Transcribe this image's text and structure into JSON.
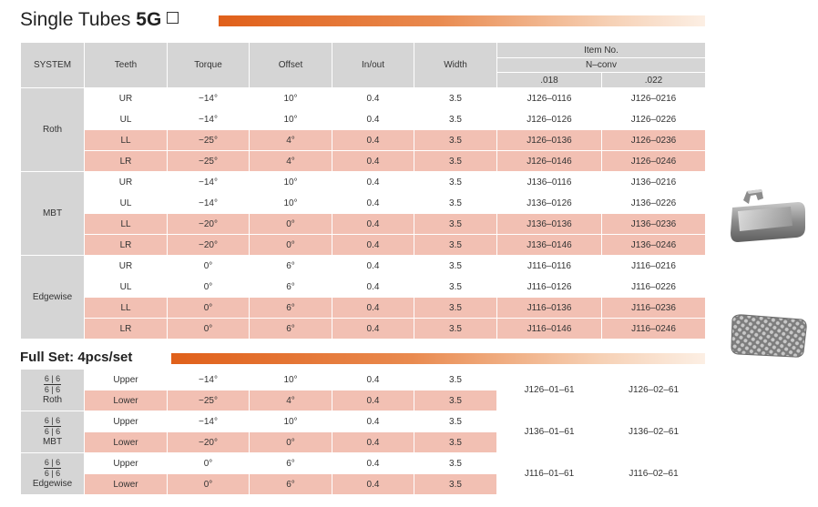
{
  "title": {
    "prefix": "Single Tubes ",
    "suffix": "5G"
  },
  "headers": {
    "system": "SYSTEM",
    "teeth": "Teeth",
    "torque": "Torque",
    "offset": "Offset",
    "inout": "In/out",
    "width": "Width",
    "item_no": "Item No.",
    "nconv": "N–conv",
    "slot1": ".018",
    "slot2": ".022"
  },
  "single": [
    {
      "system": "Roth",
      "rows": [
        {
          "teeth": "UR",
          "torque": "−14°",
          "offset": "10°",
          "inout": "0.4",
          "width": "3.5",
          "c018": "J126–0116",
          "c022": "J126–0216"
        },
        {
          "teeth": "UL",
          "torque": "−14°",
          "offset": "10°",
          "inout": "0.4",
          "width": "3.5",
          "c018": "J126–0126",
          "c022": "J126–0226"
        },
        {
          "teeth": "LL",
          "torque": "−25°",
          "offset": "4°",
          "inout": "0.4",
          "width": "3.5",
          "c018": "J126–0136",
          "c022": "J126–0236"
        },
        {
          "teeth": "LR",
          "torque": "−25°",
          "offset": "4°",
          "inout": "0.4",
          "width": "3.5",
          "c018": "J126–0146",
          "c022": "J126–0246"
        }
      ]
    },
    {
      "system": "MBT",
      "rows": [
        {
          "teeth": "UR",
          "torque": "−14°",
          "offset": "10°",
          "inout": "0.4",
          "width": "3.5",
          "c018": "J136–0116",
          "c022": "J136–0216"
        },
        {
          "teeth": "UL",
          "torque": "−14°",
          "offset": "10°",
          "inout": "0.4",
          "width": "3.5",
          "c018": "J136–0126",
          "c022": "J136–0226"
        },
        {
          "teeth": "LL",
          "torque": "−20°",
          "offset": "0°",
          "inout": "0.4",
          "width": "3.5",
          "c018": "J136–0136",
          "c022": "J136–0236"
        },
        {
          "teeth": "LR",
          "torque": "−20°",
          "offset": "0°",
          "inout": "0.4",
          "width": "3.5",
          "c018": "J136–0146",
          "c022": "J136–0246"
        }
      ]
    },
    {
      "system": "Edgewise",
      "rows": [
        {
          "teeth": "UR",
          "torque": "0°",
          "offset": "6°",
          "inout": "0.4",
          "width": "3.5",
          "c018": "J116–0116",
          "c022": "J116–0216"
        },
        {
          "teeth": "UL",
          "torque": "0°",
          "offset": "6°",
          "inout": "0.4",
          "width": "3.5",
          "c018": "J116–0126",
          "c022": "J116–0226"
        },
        {
          "teeth": "LL",
          "torque": "0°",
          "offset": "6°",
          "inout": "0.4",
          "width": "3.5",
          "c018": "J116–0136",
          "c022": "J116–0236"
        },
        {
          "teeth": "LR",
          "torque": "0°",
          "offset": "6°",
          "inout": "0.4",
          "width": "3.5",
          "c018": "J116–0146",
          "c022": "J116–0246"
        }
      ]
    }
  ],
  "fullset_title": "Full Set: 4pcs/set",
  "fullset": [
    {
      "frac_top": "6 | 6",
      "frac_bot": "6 | 6",
      "system": "Roth",
      "c018": "J126–01–61",
      "c022": "J126–02–61",
      "rows": [
        {
          "teeth": "Upper",
          "torque": "−14°",
          "offset": "10°",
          "inout": "0.4",
          "width": "3.5"
        },
        {
          "teeth": "Lower",
          "torque": "−25°",
          "offset": "4°",
          "inout": "0.4",
          "width": "3.5"
        }
      ]
    },
    {
      "frac_top": "6 | 6",
      "frac_bot": "6 | 6",
      "system": "MBT",
      "c018": "J136–01–61",
      "c022": "J136–02–61",
      "rows": [
        {
          "teeth": "Upper",
          "torque": "−14°",
          "offset": "10°",
          "inout": "0.4",
          "width": "3.5"
        },
        {
          "teeth": "Lower",
          "torque": "−20°",
          "offset": "0°",
          "inout": "0.4",
          "width": "3.5"
        }
      ]
    },
    {
      "frac_top": "6 | 6",
      "frac_bot": "6 | 6",
      "system": "Edgewise",
      "c018": "J116–01–61",
      "c022": "J116–02–61",
      "rows": [
        {
          "teeth": "Upper",
          "torque": "0°",
          "offset": "6°",
          "inout": "0.4",
          "width": "3.5"
        },
        {
          "teeth": "Lower",
          "torque": "0°",
          "offset": "6°",
          "inout": "0.4",
          "width": "3.5"
        }
      ]
    }
  ],
  "colors": {
    "header_gray": "#d5d5d5",
    "pink_row": "#f2c0b3",
    "accent_orange": "#e0601a"
  },
  "images": [
    {
      "icon": "buccal-tube-photo"
    },
    {
      "icon": "mesh-base-photo"
    }
  ]
}
